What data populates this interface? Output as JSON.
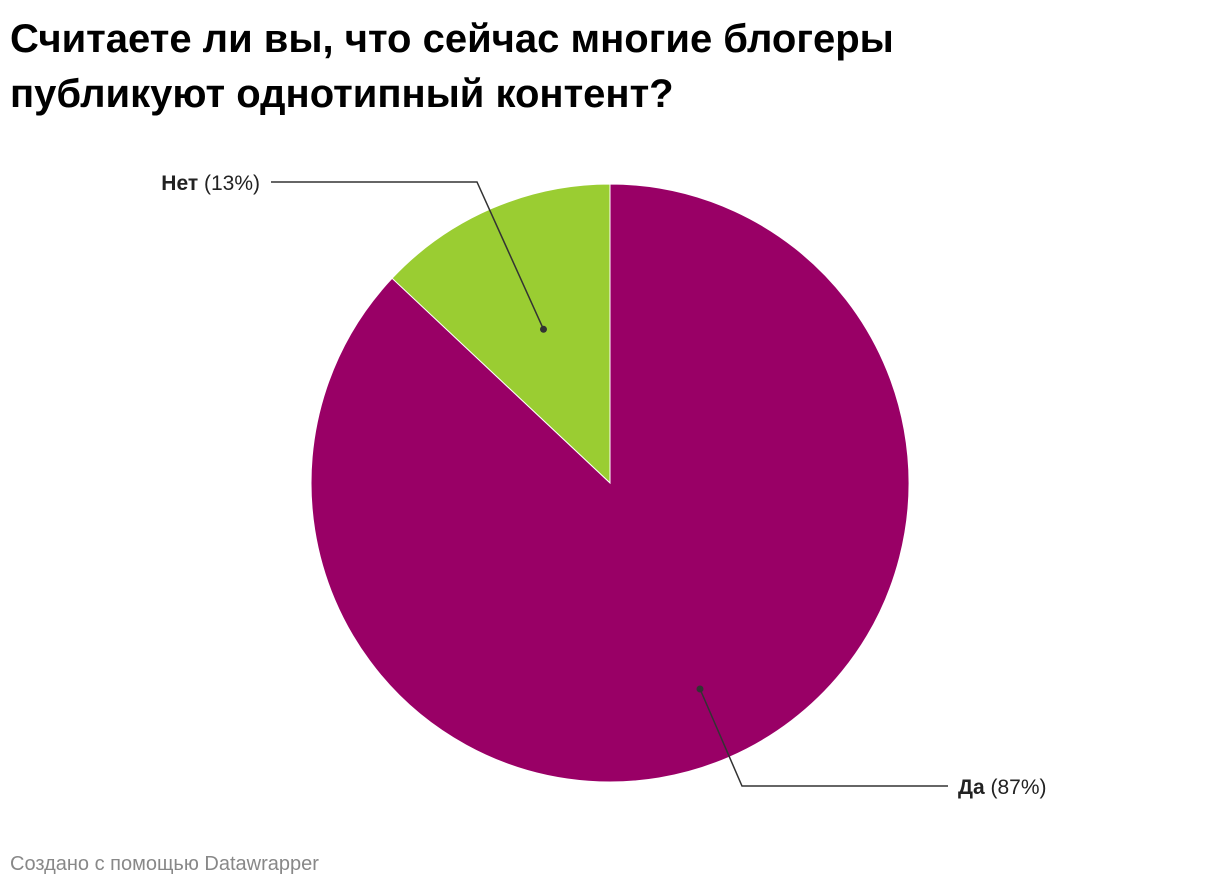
{
  "title": "Считаете ли вы, что сейчас многие блогеры публикуют однотипный контент?",
  "footer": "Создано с помощью Datawrapper",
  "chart_data": {
    "type": "pie",
    "title": "Считаете ли вы, что сейчас многие блогеры публикуют однотипный контент?",
    "slices": [
      {
        "label": "Нет",
        "value": 13,
        "display": "(13%)",
        "color": "#9acd32"
      },
      {
        "label": "Да",
        "value": 87,
        "display": "(87%)",
        "color": "#990066"
      }
    ]
  }
}
